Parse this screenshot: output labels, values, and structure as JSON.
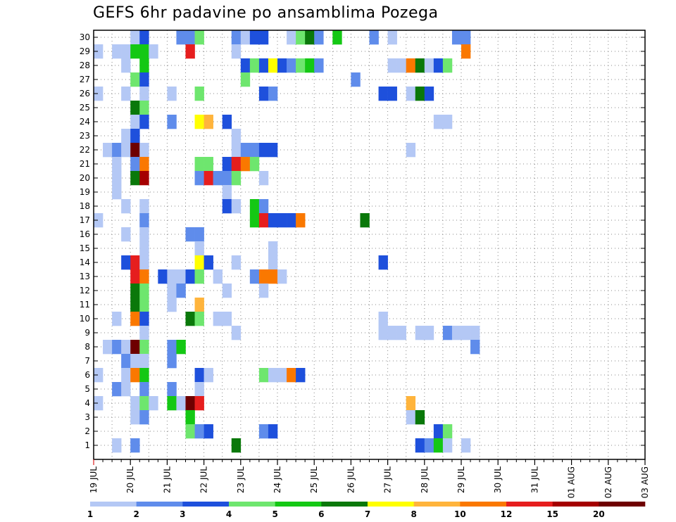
{
  "chart_data": {
    "type": "heatmap",
    "title": "GEFS 6hr padavine po ansamblima Pozega",
    "y_ticks": [
      1,
      2,
      3,
      4,
      5,
      6,
      7,
      8,
      9,
      10,
      11,
      12,
      13,
      14,
      15,
      16,
      17,
      18,
      19,
      20,
      21,
      22,
      23,
      24,
      25,
      26,
      27,
      28,
      29,
      30
    ],
    "x_ticks": [
      "19 JUL",
      "20 JUL",
      "21 JUL",
      "22 JUL",
      "23 JUL",
      "24 JUL",
      "25 JUL",
      "26 JUL",
      "27 JUL",
      "28 JUL",
      "29 JUL",
      "30 JUL",
      "31 JUL",
      "01 AUG",
      "02 AUG",
      "03 AUG"
    ],
    "x_unit": "6h step (4 per day, day 0 = 19 JUL 00Z)",
    "legend": {
      "labels": [
        "1",
        "2",
        "3",
        "4",
        "5",
        "6",
        "7",
        "8",
        "10",
        "12",
        "15",
        "20"
      ],
      "colors": [
        "#b4c8f5",
        "#5f8ceb",
        "#1e50dc",
        "#6ee66e",
        "#14c814",
        "#0a780a",
        "#ffff00",
        "#ffb43c",
        "#fa7800",
        "#e61e1e",
        "#a50000",
        "#6e0000"
      ]
    },
    "cells": [
      [
        4,
        30,
        1
      ],
      [
        5,
        30,
        3
      ],
      [
        9,
        30,
        2
      ],
      [
        10,
        30,
        2
      ],
      [
        11,
        30,
        4
      ],
      [
        15,
        30,
        2
      ],
      [
        16,
        30,
        1
      ],
      [
        17,
        30,
        3
      ],
      [
        18,
        30,
        3
      ],
      [
        21,
        30,
        1
      ],
      [
        22,
        30,
        4
      ],
      [
        23,
        30,
        6
      ],
      [
        24,
        30,
        2
      ],
      [
        26,
        30,
        5
      ],
      [
        30,
        30,
        2
      ],
      [
        32,
        30,
        1
      ],
      [
        39,
        30,
        2
      ],
      [
        40,
        30,
        2
      ],
      [
        0,
        29,
        1
      ],
      [
        2,
        29,
        1
      ],
      [
        3,
        29,
        1
      ],
      [
        4,
        29,
        5
      ],
      [
        5,
        29,
        5
      ],
      [
        6,
        29,
        1
      ],
      [
        10,
        29,
        10
      ],
      [
        15,
        29,
        1
      ],
      [
        40,
        29,
        9
      ],
      [
        3,
        28,
        1
      ],
      [
        5,
        28,
        5
      ],
      [
        16,
        28,
        3
      ],
      [
        17,
        28,
        4
      ],
      [
        18,
        28,
        3
      ],
      [
        19,
        28,
        7
      ],
      [
        20,
        28,
        3
      ],
      [
        21,
        28,
        2
      ],
      [
        22,
        28,
        4
      ],
      [
        23,
        28,
        5
      ],
      [
        24,
        28,
        2
      ],
      [
        32,
        28,
        1
      ],
      [
        33,
        28,
        1
      ],
      [
        34,
        28,
        9
      ],
      [
        35,
        28,
        6
      ],
      [
        36,
        28,
        1
      ],
      [
        37,
        28,
        3
      ],
      [
        38,
        28,
        4
      ],
      [
        4,
        27,
        4
      ],
      [
        5,
        27,
        3
      ],
      [
        16,
        27,
        4
      ],
      [
        28,
        27,
        2
      ],
      [
        0,
        26,
        1
      ],
      [
        3,
        26,
        1
      ],
      [
        5,
        26,
        1
      ],
      [
        8,
        26,
        1
      ],
      [
        11,
        26,
        4
      ],
      [
        18,
        26,
        3
      ],
      [
        19,
        26,
        2
      ],
      [
        31,
        26,
        3
      ],
      [
        32,
        26,
        3
      ],
      [
        34,
        26,
        1
      ],
      [
        35,
        26,
        6
      ],
      [
        36,
        26,
        3
      ],
      [
        4,
        25,
        6
      ],
      [
        5,
        25,
        4
      ],
      [
        4,
        24,
        1
      ],
      [
        5,
        24,
        3
      ],
      [
        8,
        24,
        2
      ],
      [
        11,
        24,
        7
      ],
      [
        12,
        24,
        8
      ],
      [
        14,
        24,
        3
      ],
      [
        37,
        24,
        1
      ],
      [
        38,
        24,
        1
      ],
      [
        3,
        23,
        1
      ],
      [
        4,
        23,
        3
      ],
      [
        15,
        23,
        1
      ],
      [
        1,
        22,
        1
      ],
      [
        2,
        22,
        2
      ],
      [
        3,
        22,
        1
      ],
      [
        4,
        22,
        12
      ],
      [
        5,
        22,
        1
      ],
      [
        15,
        22,
        1
      ],
      [
        16,
        22,
        2
      ],
      [
        17,
        22,
        2
      ],
      [
        18,
        22,
        3
      ],
      [
        19,
        22,
        3
      ],
      [
        34,
        22,
        1
      ],
      [
        2,
        21,
        1
      ],
      [
        4,
        21,
        2
      ],
      [
        5,
        21,
        9
      ],
      [
        11,
        21,
        4
      ],
      [
        12,
        21,
        4
      ],
      [
        14,
        21,
        3
      ],
      [
        15,
        21,
        10
      ],
      [
        16,
        21,
        9
      ],
      [
        17,
        21,
        4
      ],
      [
        2,
        20,
        1
      ],
      [
        4,
        20,
        6
      ],
      [
        5,
        20,
        11
      ],
      [
        11,
        20,
        2
      ],
      [
        12,
        20,
        10
      ],
      [
        13,
        20,
        2
      ],
      [
        14,
        20,
        2
      ],
      [
        15,
        20,
        4
      ],
      [
        18,
        20,
        1
      ],
      [
        2,
        19,
        1
      ],
      [
        14,
        19,
        1
      ],
      [
        3,
        18,
        1
      ],
      [
        5,
        18,
        1
      ],
      [
        14,
        18,
        3
      ],
      [
        15,
        18,
        1
      ],
      [
        17,
        18,
        5
      ],
      [
        18,
        18,
        2
      ],
      [
        0,
        17,
        1
      ],
      [
        5,
        17,
        2
      ],
      [
        17,
        17,
        5
      ],
      [
        18,
        17,
        10
      ],
      [
        19,
        17,
        3
      ],
      [
        20,
        17,
        3
      ],
      [
        21,
        17,
        3
      ],
      [
        22,
        17,
        9
      ],
      [
        29,
        17,
        6
      ],
      [
        3,
        16,
        1
      ],
      [
        5,
        16,
        1
      ],
      [
        10,
        16,
        2
      ],
      [
        11,
        16,
        2
      ],
      [
        5,
        15,
        1
      ],
      [
        11,
        15,
        1
      ],
      [
        19,
        15,
        1
      ],
      [
        3,
        14,
        3
      ],
      [
        4,
        14,
        10
      ],
      [
        5,
        14,
        1
      ],
      [
        11,
        14,
        7
      ],
      [
        12,
        14,
        3
      ],
      [
        15,
        14,
        1
      ],
      [
        19,
        14,
        1
      ],
      [
        31,
        14,
        3
      ],
      [
        4,
        13,
        10
      ],
      [
        5,
        13,
        9
      ],
      [
        7,
        13,
        3
      ],
      [
        8,
        13,
        1
      ],
      [
        9,
        13,
        1
      ],
      [
        10,
        13,
        3
      ],
      [
        11,
        13,
        4
      ],
      [
        13,
        13,
        1
      ],
      [
        17,
        13,
        2
      ],
      [
        18,
        13,
        9
      ],
      [
        19,
        13,
        9
      ],
      [
        20,
        13,
        1
      ],
      [
        4,
        12,
        6
      ],
      [
        5,
        12,
        4
      ],
      [
        8,
        12,
        1
      ],
      [
        9,
        12,
        2
      ],
      [
        14,
        12,
        1
      ],
      [
        18,
        12,
        1
      ],
      [
        4,
        11,
        6
      ],
      [
        5,
        11,
        4
      ],
      [
        8,
        11,
        1
      ],
      [
        11,
        11,
        8
      ],
      [
        2,
        10,
        1
      ],
      [
        4,
        10,
        9
      ],
      [
        5,
        10,
        3
      ],
      [
        10,
        10,
        6
      ],
      [
        11,
        10,
        4
      ],
      [
        13,
        10,
        1
      ],
      [
        14,
        10,
        1
      ],
      [
        31,
        10,
        1
      ],
      [
        5,
        9,
        1
      ],
      [
        15,
        9,
        1
      ],
      [
        31,
        9,
        1
      ],
      [
        32,
        9,
        1
      ],
      [
        33,
        9,
        1
      ],
      [
        35,
        9,
        1
      ],
      [
        36,
        9,
        1
      ],
      [
        38,
        9,
        2
      ],
      [
        39,
        9,
        1
      ],
      [
        40,
        9,
        1
      ],
      [
        41,
        9,
        1
      ],
      [
        1,
        8,
        1
      ],
      [
        2,
        8,
        2
      ],
      [
        3,
        8,
        1
      ],
      [
        4,
        8,
        12
      ],
      [
        5,
        8,
        4
      ],
      [
        8,
        8,
        2
      ],
      [
        9,
        8,
        5
      ],
      [
        41,
        8,
        2
      ],
      [
        3,
        7,
        2
      ],
      [
        4,
        7,
        1
      ],
      [
        5,
        7,
        1
      ],
      [
        8,
        7,
        2
      ],
      [
        0,
        6,
        1
      ],
      [
        3,
        6,
        1
      ],
      [
        4,
        6,
        9
      ],
      [
        5,
        6,
        5
      ],
      [
        11,
        6,
        3
      ],
      [
        12,
        6,
        1
      ],
      [
        18,
        6,
        4
      ],
      [
        19,
        6,
        1
      ],
      [
        20,
        6,
        1
      ],
      [
        21,
        6,
        9
      ],
      [
        22,
        6,
        3
      ],
      [
        2,
        5,
        2
      ],
      [
        3,
        5,
        1
      ],
      [
        5,
        5,
        2
      ],
      [
        8,
        5,
        2
      ],
      [
        11,
        5,
        1
      ],
      [
        0,
        4,
        1
      ],
      [
        4,
        4,
        1
      ],
      [
        5,
        4,
        4
      ],
      [
        6,
        4,
        1
      ],
      [
        8,
        4,
        5
      ],
      [
        9,
        4,
        1
      ],
      [
        10,
        4,
        12
      ],
      [
        11,
        4,
        10
      ],
      [
        34,
        4,
        8
      ],
      [
        4,
        3,
        1
      ],
      [
        5,
        3,
        2
      ],
      [
        10,
        3,
        5
      ],
      [
        34,
        3,
        1
      ],
      [
        35,
        3,
        6
      ],
      [
        10,
        2,
        4
      ],
      [
        11,
        2,
        2
      ],
      [
        12,
        2,
        3
      ],
      [
        18,
        2,
        2
      ],
      [
        19,
        2,
        3
      ],
      [
        37,
        2,
        3
      ],
      [
        38,
        2,
        4
      ],
      [
        2,
        1,
        1
      ],
      [
        4,
        1,
        2
      ],
      [
        15,
        1,
        6
      ],
      [
        35,
        1,
        3
      ],
      [
        36,
        1,
        2
      ],
      [
        37,
        1,
        5
      ],
      [
        38,
        1,
        1
      ],
      [
        40,
        1,
        1
      ],
      [
        2,
        0,
        1
      ],
      [
        5,
        0,
        1
      ],
      [
        4,
        0,
        2
      ],
      [
        8,
        0,
        1
      ],
      [
        14,
        0,
        1
      ],
      [
        15,
        0,
        1
      ],
      [
        34,
        0,
        1
      ],
      [
        36,
        0,
        2
      ],
      [
        37,
        0,
        3
      ],
      [
        38,
        0,
        5
      ],
      [
        40,
        0,
        1
      ],
      [
        42,
        0,
        1
      ],
      [
        6,
        -1,
        1
      ],
      [
        7,
        -1,
        2
      ],
      [
        15,
        -1,
        1
      ],
      [
        16,
        -1,
        1
      ],
      [
        37,
        -1,
        1
      ],
      [
        3,
        -2,
        1
      ],
      [
        4,
        -2,
        10
      ],
      [
        6,
        -2,
        5
      ],
      [
        11,
        -2,
        2
      ],
      [
        12,
        -2,
        6
      ],
      [
        13,
        -2,
        3
      ],
      [
        14,
        -2,
        1
      ],
      [
        2,
        -3,
        1
      ],
      [
        4,
        -3,
        6
      ],
      [
        5,
        -3,
        2
      ],
      [
        7,
        -3,
        1
      ],
      [
        9,
        -3,
        1
      ],
      [
        10,
        -3,
        2
      ],
      [
        13,
        -3,
        1
      ],
      [
        18,
        -3,
        1
      ],
      [
        19,
        -3,
        5
      ],
      [
        35,
        -3,
        1
      ],
      [
        37,
        -3,
        2
      ],
      [
        38,
        -3,
        5
      ],
      [
        39,
        -3,
        1
      ],
      [
        2,
        -4,
        1
      ],
      [
        13,
        -4,
        1
      ],
      [
        15,
        -4,
        6
      ],
      [
        16,
        -4,
        5
      ],
      [
        17,
        -4,
        6
      ],
      [
        19,
        -4,
        1
      ],
      [
        5,
        -5,
        2
      ],
      [
        12,
        -5,
        4
      ],
      [
        31,
        -5,
        3
      ],
      [
        34,
        -5,
        1
      ],
      [
        35,
        -5,
        2
      ],
      [
        40,
        -5,
        2
      ],
      [
        41,
        -5,
        1
      ],
      [
        42,
        -5,
        1
      ],
      [
        4,
        -6,
        11
      ],
      [
        5,
        -6,
        9
      ]
    ]
  }
}
